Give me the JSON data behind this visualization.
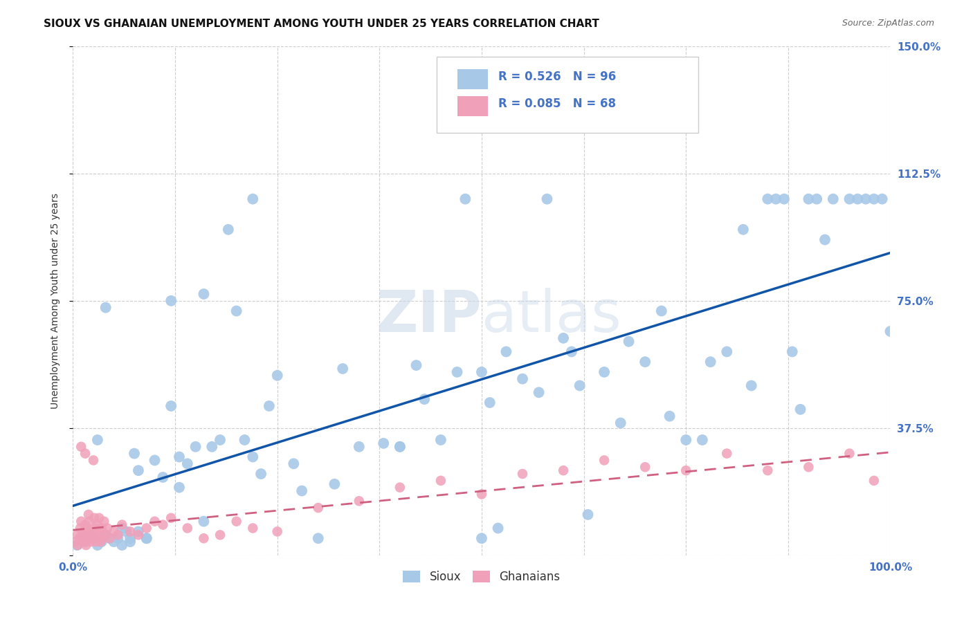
{
  "title": "SIOUX VS GHANAIAN UNEMPLOYMENT AMONG YOUTH UNDER 25 YEARS CORRELATION CHART",
  "source": "Source: ZipAtlas.com",
  "ylabel": "Unemployment Among Youth under 25 years",
  "xlim": [
    0,
    1.0
  ],
  "ylim": [
    0,
    1.5
  ],
  "xtick_positions": [
    0.0,
    0.125,
    0.25,
    0.375,
    0.5,
    0.625,
    0.75,
    0.875,
    1.0
  ],
  "xticklabels": [
    "0.0%",
    "",
    "",
    "",
    "",
    "",
    "",
    "",
    "100.0%"
  ],
  "ytick_positions": [
    0.0,
    0.375,
    0.75,
    1.125,
    1.5
  ],
  "yticklabels": [
    "",
    "37.5%",
    "75.0%",
    "112.5%",
    "150.0%"
  ],
  "sioux_color": "#a8c8e8",
  "ghanaian_color": "#f0a0b8",
  "sioux_line_color": "#1055a8",
  "ghanaian_line_color": "#d06080",
  "legend_R1": "0.526",
  "legend_N1": "96",
  "legend_R2": "0.085",
  "legend_N2": "68",
  "background_color": "#ffffff",
  "grid_color": "#c8c8c8",
  "tick_color": "#4472c4",
  "tick_fontsize": 11,
  "title_fontsize": 11,
  "ylabel_fontsize": 10,
  "sioux_x": [
    0.005,
    0.01,
    0.015,
    0.02,
    0.025,
    0.03,
    0.035,
    0.04,
    0.045,
    0.05,
    0.055,
    0.06,
    0.065,
    0.07,
    0.075,
    0.08,
    0.09,
    0.1,
    0.11,
    0.12,
    0.13,
    0.14,
    0.15,
    0.16,
    0.17,
    0.18,
    0.19,
    0.2,
    0.21,
    0.22,
    0.23,
    0.24,
    0.25,
    0.27,
    0.28,
    0.3,
    0.32,
    0.33,
    0.35,
    0.38,
    0.4,
    0.4,
    0.42,
    0.43,
    0.45,
    0.47,
    0.48,
    0.5,
    0.5,
    0.51,
    0.52,
    0.53,
    0.55,
    0.57,
    0.58,
    0.6,
    0.61,
    0.62,
    0.63,
    0.65,
    0.67,
    0.68,
    0.7,
    0.72,
    0.73,
    0.75,
    0.77,
    0.78,
    0.8,
    0.82,
    0.83,
    0.85,
    0.86,
    0.87,
    0.88,
    0.89,
    0.9,
    0.91,
    0.92,
    0.93,
    0.95,
    0.96,
    0.97,
    0.98,
    0.99,
    1.0,
    0.03,
    0.06,
    0.09,
    0.12,
    0.16,
    0.22,
    0.13,
    0.08,
    0.04,
    0.07
  ],
  "sioux_y": [
    0.03,
    0.05,
    0.04,
    0.06,
    0.05,
    0.03,
    0.04,
    0.06,
    0.05,
    0.04,
    0.05,
    0.03,
    0.07,
    0.04,
    0.3,
    0.25,
    0.05,
    0.28,
    0.23,
    0.44,
    0.2,
    0.27,
    0.32,
    0.1,
    0.32,
    0.34,
    0.96,
    0.72,
    0.34,
    0.29,
    0.24,
    0.44,
    0.53,
    0.27,
    0.19,
    0.05,
    0.21,
    0.55,
    0.32,
    0.33,
    0.32,
    0.32,
    0.56,
    0.46,
    0.34,
    0.54,
    1.05,
    0.05,
    0.54,
    0.45,
    0.08,
    0.6,
    0.52,
    0.48,
    1.05,
    0.64,
    0.6,
    0.5,
    0.12,
    0.54,
    0.39,
    0.63,
    0.57,
    0.72,
    0.41,
    0.34,
    0.34,
    0.57,
    0.6,
    0.96,
    0.5,
    1.05,
    1.05,
    1.05,
    0.6,
    0.43,
    1.05,
    1.05,
    0.93,
    1.05,
    1.05,
    1.05,
    1.05,
    1.05,
    1.05,
    0.66,
    0.34,
    0.08,
    0.05,
    0.75,
    0.77,
    1.05,
    0.29,
    0.07,
    0.73,
    0.05
  ],
  "ghanaian_x": [
    0.003,
    0.005,
    0.006,
    0.008,
    0.009,
    0.01,
    0.011,
    0.012,
    0.013,
    0.014,
    0.015,
    0.016,
    0.017,
    0.018,
    0.019,
    0.02,
    0.021,
    0.022,
    0.023,
    0.025,
    0.026,
    0.027,
    0.028,
    0.029,
    0.03,
    0.031,
    0.032,
    0.033,
    0.034,
    0.035,
    0.036,
    0.038,
    0.04,
    0.042,
    0.045,
    0.05,
    0.055,
    0.06,
    0.07,
    0.08,
    0.09,
    0.1,
    0.11,
    0.12,
    0.14,
    0.16,
    0.18,
    0.2,
    0.22,
    0.25,
    0.3,
    0.35,
    0.4,
    0.45,
    0.5,
    0.55,
    0.6,
    0.65,
    0.7,
    0.75,
    0.8,
    0.85,
    0.9,
    0.95,
    0.98,
    0.015,
    0.025,
    0.01
  ],
  "ghanaian_y": [
    0.04,
    0.06,
    0.03,
    0.05,
    0.08,
    0.1,
    0.06,
    0.04,
    0.07,
    0.05,
    0.09,
    0.03,
    0.08,
    0.05,
    0.12,
    0.1,
    0.06,
    0.04,
    0.07,
    0.05,
    0.11,
    0.08,
    0.04,
    0.06,
    0.09,
    0.05,
    0.11,
    0.07,
    0.04,
    0.08,
    0.05,
    0.1,
    0.06,
    0.08,
    0.05,
    0.07,
    0.06,
    0.09,
    0.07,
    0.06,
    0.08,
    0.1,
    0.09,
    0.11,
    0.08,
    0.05,
    0.06,
    0.1,
    0.08,
    0.07,
    0.14,
    0.16,
    0.2,
    0.22,
    0.18,
    0.24,
    0.25,
    0.28,
    0.26,
    0.25,
    0.3,
    0.25,
    0.26,
    0.3,
    0.22,
    0.3,
    0.28,
    0.32
  ]
}
